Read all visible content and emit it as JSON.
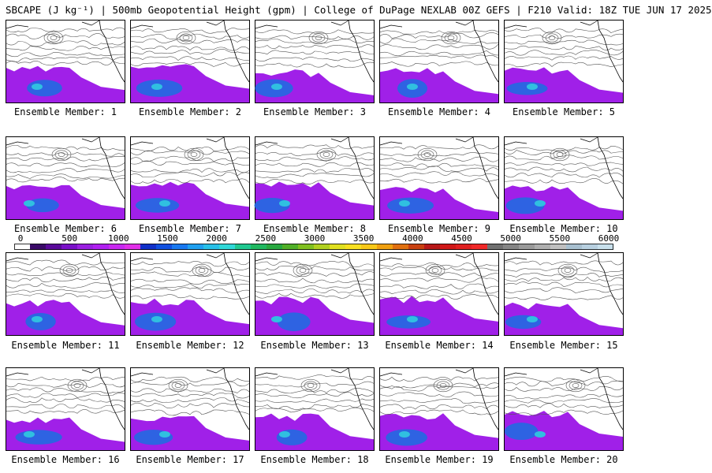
{
  "title": "SBCAPE (J kg⁻¹) | 500mb Geopotential Height (gpm) | College of DuPage NEXLAB 00Z GEFS | F210 Valid: 18Z TUE JUN 17 2025",
  "panels": [
    {
      "label": "Ensemble Member: 1"
    },
    {
      "label": "Ensemble Member: 2"
    },
    {
      "label": "Ensemble Member: 3"
    },
    {
      "label": "Ensemble Member: 4"
    },
    {
      "label": "Ensemble Member: 5"
    },
    {
      "label": "Ensemble Member: 6"
    },
    {
      "label": "Ensemble Member: 7"
    },
    {
      "label": "Ensemble Member: 8"
    },
    {
      "label": "Ensemble Member: 9"
    },
    {
      "label": "Ensemble Member: 10"
    },
    {
      "label": "Ensemble Member: 11"
    },
    {
      "label": "Ensemble Member: 12"
    },
    {
      "label": "Ensemble Member: 13"
    },
    {
      "label": "Ensemble Member: 14"
    },
    {
      "label": "Ensemble Member: 15"
    },
    {
      "label": "Ensemble Member: 16"
    },
    {
      "label": "Ensemble Member: 17"
    },
    {
      "label": "Ensemble Member: 18"
    },
    {
      "label": "Ensemble Member: 19"
    },
    {
      "label": "Ensemble Member: 20"
    }
  ],
  "colorbar": {
    "ticks": [
      "0",
      "500",
      "1000",
      "1500",
      "2000",
      "2500",
      "3000",
      "3500",
      "4000",
      "4500",
      "5000",
      "5500",
      "6000"
    ],
    "colors": [
      "#ffffff",
      "#3a0a68",
      "#5a0a9a",
      "#7a10c8",
      "#9a20e0",
      "#b020f0",
      "#c828f0",
      "#e030e8",
      "#1030c8",
      "#1050e0",
      "#1878f0",
      "#20a0f0",
      "#28c0e8",
      "#30d8d8",
      "#20c890",
      "#20b860",
      "#28a840",
      "#50b028",
      "#80c020",
      "#b0d020",
      "#e0e020",
      "#f8e020",
      "#f8c818",
      "#f0a010",
      "#e07010",
      "#c84010",
      "#b81818",
      "#d01818",
      "#e02020",
      "#f02828",
      "#707070",
      "#858585",
      "#9a9a9a",
      "#aeaeae",
      "#c0c0c0",
      "#a8c0d0",
      "#b8d0e0",
      "#c8e0ec"
    ]
  }
}
